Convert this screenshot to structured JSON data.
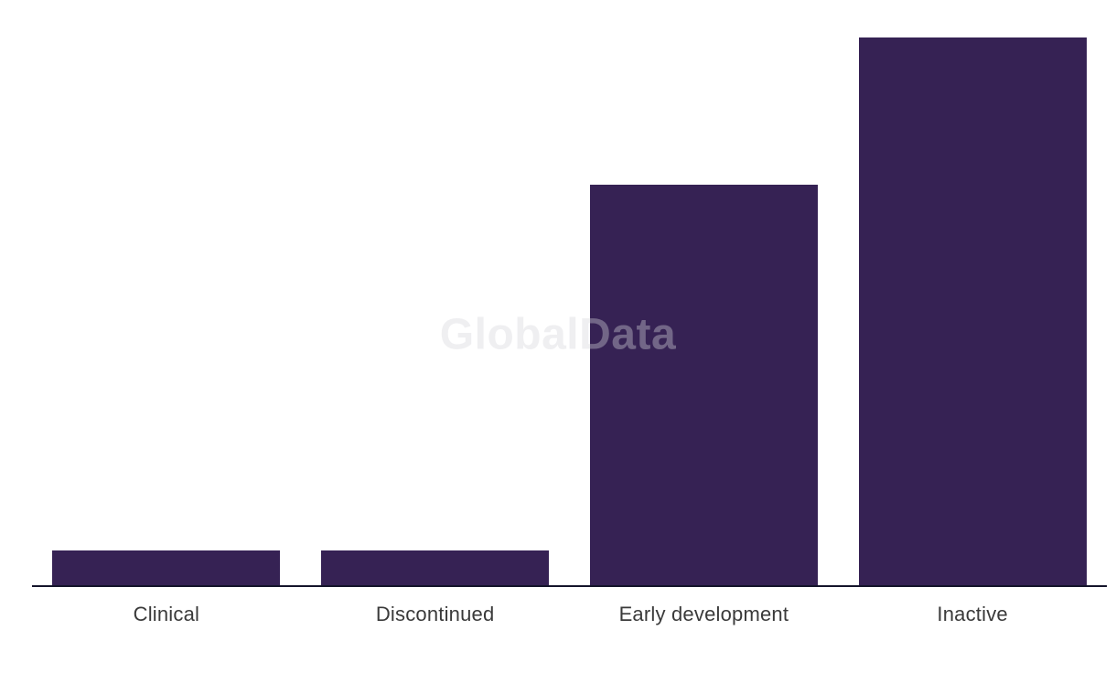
{
  "chart_data": {
    "type": "bar",
    "title": "",
    "xlabel": "",
    "ylabel": "",
    "categories": [
      "Clinical",
      "Discontinued",
      "Early development",
      "Inactive"
    ],
    "values": [
      6.3,
      6.3,
      73.1,
      100
    ],
    "ylim": [
      0,
      100
    ],
    "value_scale": "relative percent of tallest bar (no y-axis labels shown)",
    "grid": false,
    "legend": false,
    "bar_color": "#362254",
    "axis_line_color": "#14142b",
    "label_color": "#3a3a3a",
    "background_color": "#ffffff"
  },
  "watermark": {
    "text": "GlobalData",
    "color": "rgba(213,213,218,0.38)"
  }
}
